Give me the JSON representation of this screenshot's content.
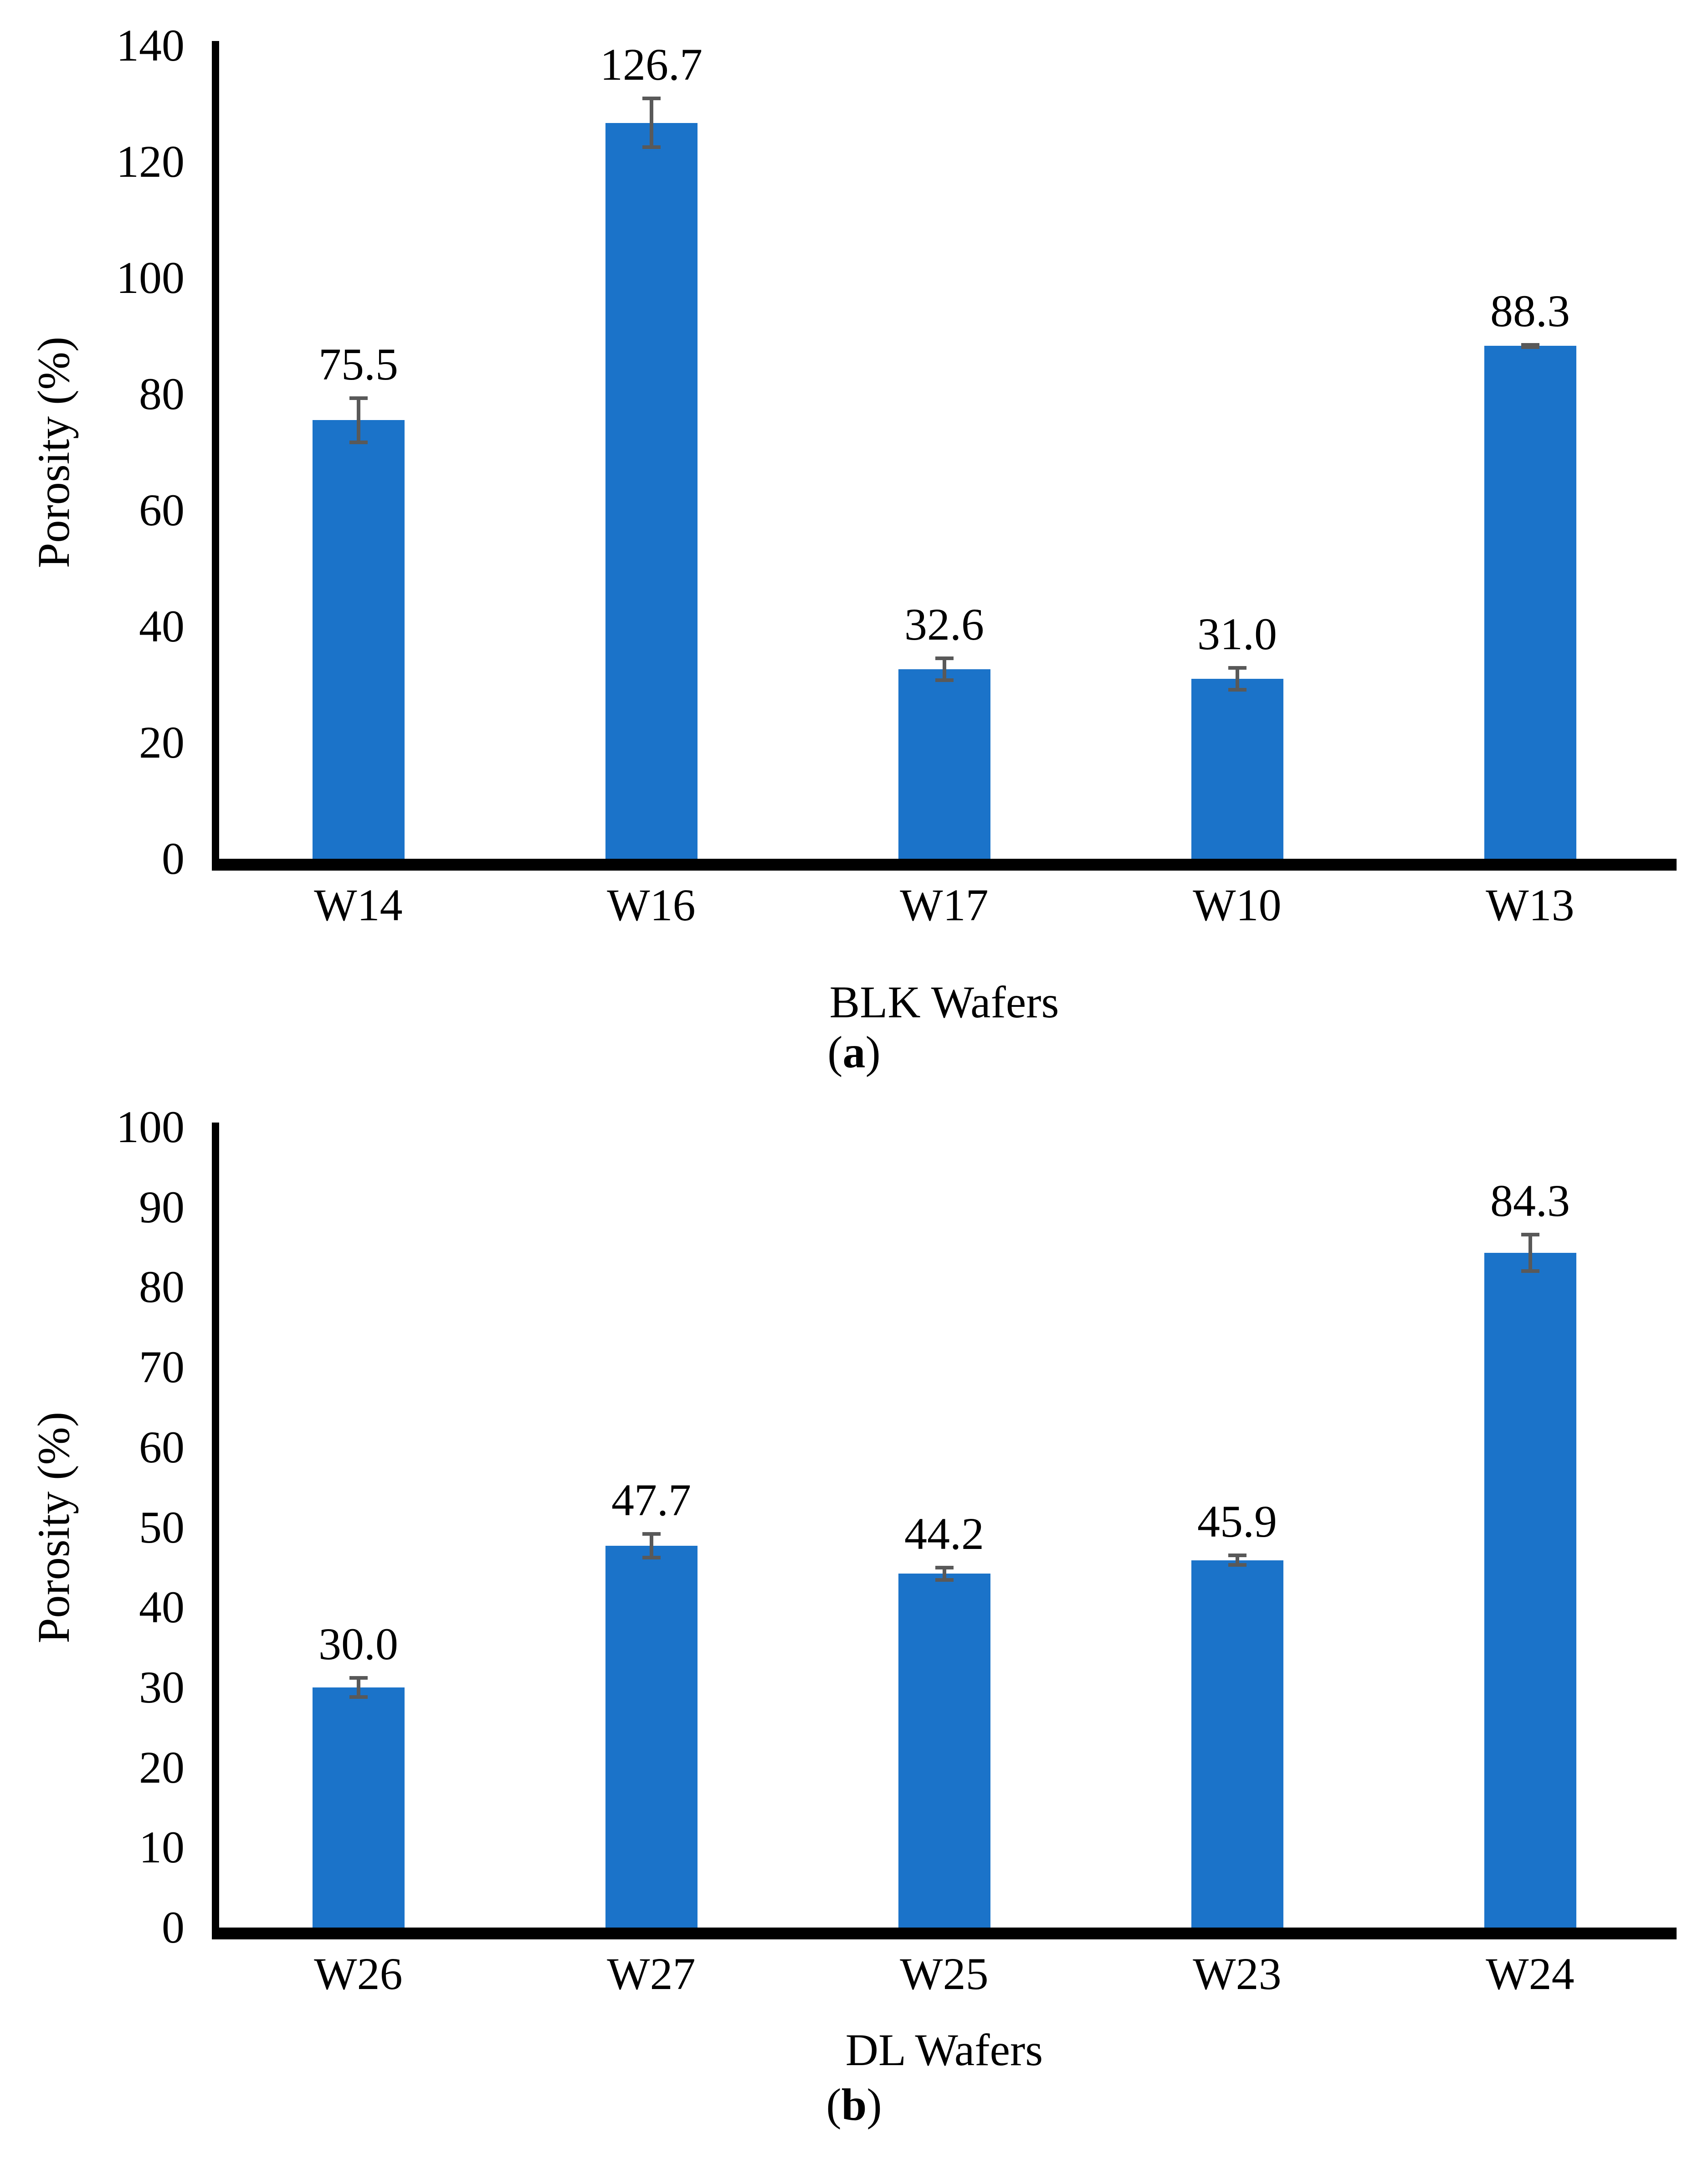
{
  "chart_data": [
    {
      "type": "bar",
      "panel": "a",
      "categories": [
        "W14",
        "W16",
        "W17",
        "W10",
        "W13"
      ],
      "values": [
        75.5,
        126.7,
        32.6,
        31.0,
        88.3
      ],
      "errors": [
        4.1,
        4.5,
        2.2,
        2.2,
        0.5
      ],
      "value_labels": [
        "75.5",
        "126.7",
        "32.6",
        "31.0",
        "88.3"
      ],
      "xlabel": "BLK Wafers",
      "ylabel": "Porosity (%)",
      "ylim": [
        0,
        140
      ],
      "ytick_step": 20,
      "yticks": [
        "0",
        "20",
        "40",
        "60",
        "80",
        "100",
        "120",
        "140"
      ],
      "caption_parts": [
        "(",
        "a",
        ")"
      ],
      "bar_color": "#1B73C9",
      "error_color": "#595959",
      "axis_color": "#000000",
      "grid": false,
      "legend": "none"
    },
    {
      "type": "bar",
      "panel": "b",
      "categories": [
        "W26",
        "W27",
        "W25",
        "W23",
        "W24"
      ],
      "values": [
        30.0,
        47.7,
        44.2,
        45.9,
        84.3
      ],
      "errors": [
        1.4,
        1.7,
        1.0,
        0.8,
        2.5
      ],
      "value_labels": [
        "30.0",
        "47.7",
        "44.2",
        "45.9",
        "84.3"
      ],
      "xlabel": "DL Wafers",
      "ylabel": "Porosity (%)",
      "ylim": [
        0,
        100
      ],
      "ytick_step": 10,
      "yticks": [
        "0",
        "10",
        "20",
        "30",
        "40",
        "50",
        "60",
        "70",
        "80",
        "90",
        "100"
      ],
      "caption_parts": [
        "(",
        "b",
        ")"
      ],
      "bar_color": "#1B73C9",
      "error_color": "#595959",
      "axis_color": "#000000",
      "grid": false,
      "legend": "none"
    }
  ]
}
